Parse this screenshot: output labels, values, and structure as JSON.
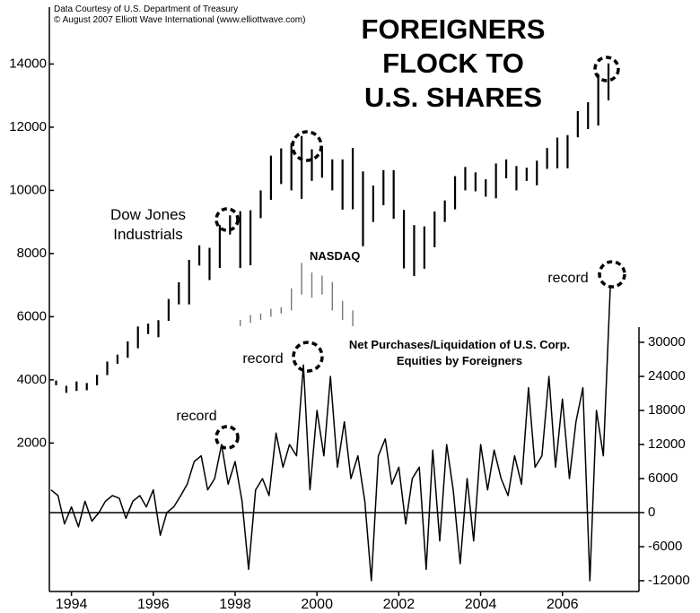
{
  "source": [
    "Data Courtesy of U.S. Department of Treasury",
    "© August 2007 Elliott Wave International (www.elliottwave.com)"
  ],
  "chart_data": {
    "type": "combo",
    "title": [
      "FOREIGNERS",
      "FLOCK TO",
      "U.S. SHARES"
    ],
    "xlim": [
      1993.96,
      2008.37
    ],
    "xticks": [
      {
        "value": 1994.5,
        "label": "1994"
      },
      {
        "value": 1996.5,
        "label": "1996"
      },
      {
        "value": 1998.5,
        "label": "1998"
      },
      {
        "value": 2000.5,
        "label": "2000"
      },
      {
        "value": 2002.5,
        "label": "2002"
      },
      {
        "value": 2004.5,
        "label": "2004"
      },
      {
        "value": 2006.5,
        "label": "2006"
      }
    ],
    "ylim": [
      -2700,
      15800
    ],
    "yticks": [
      2000,
      4000,
      6000,
      8000,
      10000,
      12000,
      14000
    ],
    "y2lim": [
      -13900,
      89050
    ],
    "y2ticks": [
      -12000,
      -6000,
      0,
      6000,
      12000,
      18000,
      24000,
      30000
    ],
    "annotations": [
      "record",
      "record",
      "record"
    ],
    "series": [
      {
        "name": "Dow Jones Industrials",
        "type": "range",
        "color": "#000000",
        "x": [
          1994.125,
          1994.375,
          1994.625,
          1994.875,
          1995.125,
          1995.375,
          1995.625,
          1995.875,
          1996.125,
          1996.375,
          1996.625,
          1996.875,
          1997.125,
          1997.375,
          1997.625,
          1997.875,
          1998.125,
          1998.375,
          1998.625,
          1998.875,
          1999.125,
          1999.375,
          1999.625,
          1999.875,
          2000.125,
          2000.375,
          2000.625,
          2000.875,
          2001.125,
          2001.375,
          2001.625,
          2001.875,
          2002.125,
          2002.375,
          2002.625,
          2002.875,
          2003.125,
          2003.375,
          2003.625,
          2003.875,
          2004.125,
          2004.375,
          2004.625,
          2004.875,
          2005.125,
          2005.375,
          2005.625,
          2005.875,
          2006.125,
          2006.375,
          2006.625,
          2006.875,
          2007.125,
          2007.375,
          2007.625
        ],
        "high": [
          3980,
          3810,
          3950,
          3900,
          4160,
          4580,
          4800,
          5220,
          5690,
          5780,
          5890,
          6560,
          7090,
          7800,
          8260,
          8180,
          8900,
          9210,
          9340,
          9370,
          10000,
          11100,
          11330,
          11500,
          11720,
          11300,
          11400,
          10980,
          10980,
          11340,
          10600,
          10150,
          10640,
          10640,
          9380,
          8900,
          8860,
          9330,
          9680,
          10450,
          10740,
          10570,
          10350,
          10850,
          10980,
          10770,
          10720,
          10940,
          11340,
          11670,
          11750,
          12510,
          12790,
          13690,
          14020
        ],
        "low": [
          3830,
          3590,
          3650,
          3670,
          3830,
          4150,
          4510,
          4700,
          5000,
          5450,
          5350,
          5870,
          6390,
          6390,
          7620,
          7160,
          7540,
          8600,
          7540,
          7630,
          9120,
          9700,
          10200,
          10000,
          9730,
          10300,
          10400,
          10000,
          9390,
          9400,
          8230,
          9000,
          9530,
          9100,
          7530,
          7290,
          7520,
          8200,
          9000,
          9400,
          10000,
          9970,
          9800,
          9750,
          10380,
          10000,
          10300,
          10160,
          10680,
          10700,
          10700,
          11680,
          11940,
          12050,
          12850
        ]
      },
      {
        "name": "NASDAQ",
        "type": "range",
        "color": "#777777",
        "x": [
          1998.625,
          1998.875,
          1999.125,
          1999.375,
          1999.625,
          1999.875,
          2000.125,
          2000.375,
          2000.625,
          2000.875,
          2001.125,
          2001.375
        ],
        "high": [
          5900,
          6050,
          6100,
          6250,
          6300,
          6900,
          7700,
          7400,
          7300,
          7100,
          6500,
          6200
        ],
        "low": [
          5700,
          5800,
          5900,
          6000,
          6100,
          6200,
          6700,
          6600,
          6700,
          6200,
          5900,
          5700
        ]
      },
      {
        "name": "Net Purchases/Liquidation of U.S. Corp. Equities by Foreigners",
        "type": "line",
        "axis": "y2",
        "color": "#000000",
        "x": [
          1994,
          1994.17,
          1994.33,
          1994.5,
          1994.67,
          1994.83,
          1995,
          1995.17,
          1995.33,
          1995.5,
          1995.67,
          1995.83,
          1996,
          1996.17,
          1996.33,
          1996.5,
          1996.67,
          1996.83,
          1997,
          1997.17,
          1997.33,
          1997.5,
          1997.67,
          1997.83,
          1998,
          1998.17,
          1998.33,
          1998.5,
          1998.67,
          1998.83,
          1999,
          1999.17,
          1999.33,
          1999.5,
          1999.67,
          1999.83,
          2000,
          2000.17,
          2000.33,
          2000.5,
          2000.67,
          2000.83,
          2001,
          2001.17,
          2001.33,
          2001.5,
          2001.67,
          2001.83,
          2002,
          2002.17,
          2002.33,
          2002.5,
          2002.67,
          2002.83,
          2003,
          2003.17,
          2003.33,
          2003.5,
          2003.67,
          2003.83,
          2004,
          2004.17,
          2004.33,
          2004.5,
          2004.67,
          2004.83,
          2005,
          2005.17,
          2005.33,
          2005.5,
          2005.67,
          2005.83,
          2006,
          2006.17,
          2006.33,
          2006.5,
          2006.67,
          2006.83,
          2007,
          2007.17,
          2007.33,
          2007.5,
          2007.67
        ],
        "values": [
          4000,
          3000,
          -2000,
          1000,
          -2500,
          2000,
          -1500,
          0,
          2000,
          3000,
          2500,
          -1000,
          2000,
          3000,
          1000,
          4000,
          -4000,
          0,
          1000,
          3000,
          5000,
          9000,
          10000,
          4000,
          6000,
          12000,
          5000,
          9000,
          2000,
          -10000,
          4000,
          6000,
          3000,
          14000,
          8000,
          12000,
          10000,
          26000,
          4000,
          18000,
          10000,
          24000,
          8000,
          16000,
          6000,
          10000,
          2000,
          -12000,
          10000,
          13000,
          5000,
          8000,
          -2000,
          6000,
          8000,
          -10000,
          11000,
          -5000,
          12000,
          4000,
          -9000,
          6000,
          -5000,
          12000,
          4000,
          11000,
          6000,
          3000,
          10000,
          5000,
          22000,
          8000,
          10000,
          24000,
          8000,
          20000,
          6000,
          16000,
          22000,
          -12000,
          18000,
          10000,
          40000
        ]
      }
    ]
  }
}
